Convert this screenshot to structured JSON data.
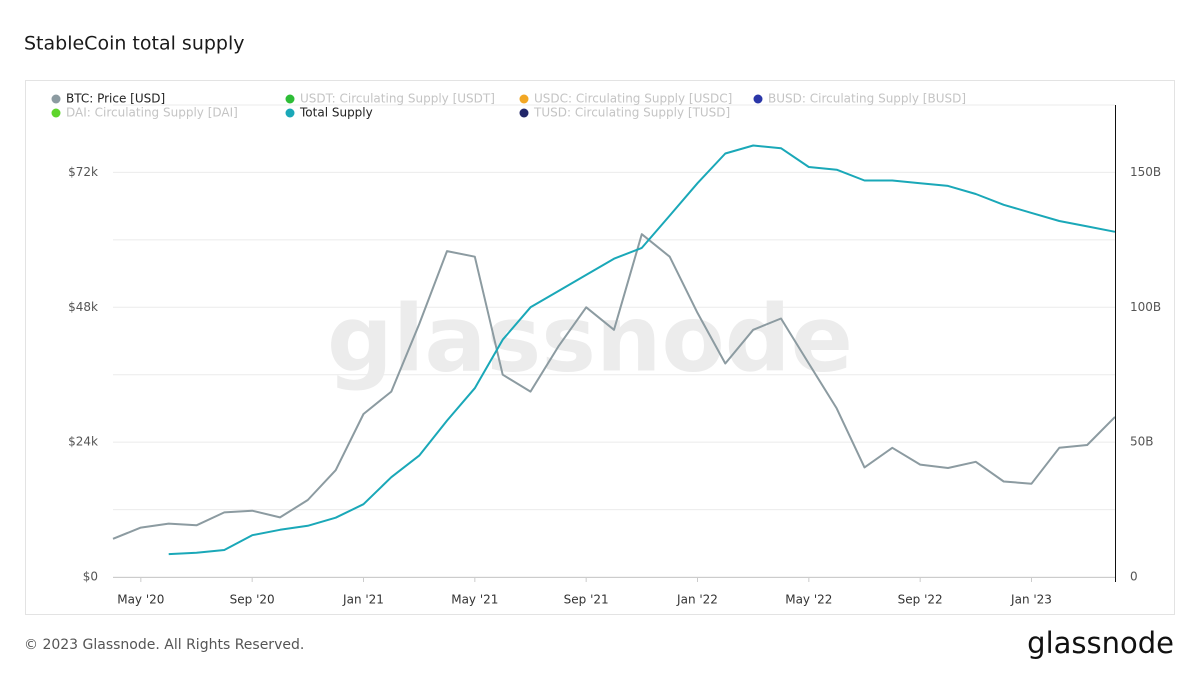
{
  "chart_data": {
    "type": "line",
    "title": "StableCoin total supply",
    "watermark": "glassnode",
    "footer": "© 2023 Glassnode. All Rights Reserved.",
    "logo": "glassnode",
    "x": [
      "2020-04",
      "2020-05",
      "2020-06",
      "2020-07",
      "2020-08",
      "2020-09",
      "2020-10",
      "2020-11",
      "2020-12",
      "2021-01",
      "2021-02",
      "2021-03",
      "2021-04",
      "2021-05",
      "2021-06",
      "2021-07",
      "2021-08",
      "2021-09",
      "2021-10",
      "2021-11",
      "2021-12",
      "2022-01",
      "2022-02",
      "2022-03",
      "2022-04",
      "2022-05",
      "2022-06",
      "2022-07",
      "2022-08",
      "2022-09",
      "2022-10",
      "2022-11",
      "2022-12",
      "2023-01",
      "2023-02",
      "2023-03",
      "2023-04"
    ],
    "xlim": [
      "2020-04",
      "2023-04"
    ],
    "xticks": [
      {
        "value": "2020-05",
        "label": "May '20"
      },
      {
        "value": "2020-09",
        "label": "Sep '20"
      },
      {
        "value": "2021-01",
        "label": "Jan '21"
      },
      {
        "value": "2021-05",
        "label": "May '21"
      },
      {
        "value": "2021-09",
        "label": "Sep '21"
      },
      {
        "value": "2022-01",
        "label": "Jan '22"
      },
      {
        "value": "2022-05",
        "label": "May '22"
      },
      {
        "value": "2022-09",
        "label": "Sep '22"
      },
      {
        "value": "2023-01",
        "label": "Jan '23"
      }
    ],
    "ylim": [
      0,
      84000
    ],
    "yticks": [
      {
        "value": 0,
        "label": "$0"
      },
      {
        "value": 24000,
        "label": "$24k"
      },
      {
        "value": 48000,
        "label": "$48k"
      },
      {
        "value": 72000,
        "label": "$72k"
      }
    ],
    "ygrid": [
      0,
      12000,
      24000,
      36000,
      48000,
      60000,
      72000,
      84000
    ],
    "y2lim": [
      0,
      175
    ],
    "y2ticks": [
      0,
      {
        "value": 50,
        "label": "50B"
      },
      {
        "value": 100,
        "label": "100B"
      },
      {
        "value": 150,
        "label": "150B"
      }
    ],
    "grid": true,
    "legend": "top-left",
    "series": [
      {
        "name": "BTC: Price [USD]",
        "color": "#8c9ba1",
        "values": [
          6800,
          8800,
          9500,
          9200,
          11500,
          11800,
          10600,
          13700,
          19000,
          29000,
          33000,
          45000,
          58000,
          57000,
          36000,
          33000,
          41000,
          48000,
          44000,
          61000,
          57000,
          47000,
          38000,
          44000,
          46000,
          38000,
          30000,
          19500,
          23000,
          20000,
          19400,
          20500,
          17000,
          16600,
          23000,
          23500,
          28500
        ]
      },
      {
        "name": "USDT: Circulating Supply [USDT]",
        "color": "#2dbd36",
        "hidden": true,
        "axis": "y2",
        "values": [
          null,
          null,
          null,
          null,
          null,
          null,
          null,
          null,
          null,
          null,
          null,
          null,
          null,
          null,
          null,
          null,
          null,
          null,
          null,
          null,
          null,
          null,
          null,
          null,
          null,
          null,
          null,
          null,
          null,
          null,
          null,
          null,
          null,
          null,
          null,
          null,
          null
        ]
      },
      {
        "name": "USDC: Circulating Supply [USDC]",
        "color": "#f2a724",
        "hidden": true,
        "axis": "y2",
        "values": [
          null,
          null,
          null,
          null,
          null,
          null,
          null,
          null,
          null,
          null,
          null,
          null,
          null,
          null,
          null,
          null,
          null,
          null,
          null,
          null,
          null,
          null,
          null,
          null,
          null,
          null,
          null,
          null,
          null,
          null,
          null,
          null,
          null,
          null,
          null,
          null,
          null
        ]
      },
      {
        "name": "BUSD: Circulating Supply [BUSD]",
        "color": "#2a36a8",
        "hidden": true,
        "axis": "y2",
        "values": [
          null,
          null,
          null,
          null,
          null,
          null,
          null,
          null,
          null,
          null,
          null,
          null,
          null,
          null,
          null,
          null,
          null,
          null,
          null,
          null,
          null,
          null,
          null,
          null,
          null,
          null,
          null,
          null,
          null,
          null,
          null,
          null,
          null,
          null,
          null,
          null,
          null
        ]
      },
      {
        "name": "DAI: Circulating Supply [DAI]",
        "color": "#5fd52c",
        "hidden": true,
        "axis": "y2",
        "values": [
          null,
          null,
          null,
          null,
          null,
          null,
          null,
          null,
          null,
          null,
          null,
          null,
          null,
          null,
          null,
          null,
          null,
          null,
          null,
          null,
          null,
          null,
          null,
          null,
          null,
          null,
          null,
          null,
          null,
          null,
          null,
          null,
          null,
          null,
          null,
          null,
          null
        ]
      },
      {
        "name": "Total Supply",
        "color": "#1aa8b8",
        "axis": "y2",
        "values": [
          null,
          null,
          8.5,
          9,
          10,
          15.5,
          17.5,
          19,
          22,
          27,
          37,
          45,
          58,
          70,
          88,
          100,
          106,
          112,
          118,
          122,
          134,
          146,
          157,
          160,
          159,
          152,
          151,
          147,
          147,
          146,
          145,
          142,
          138,
          135,
          132,
          130,
          128
        ]
      },
      {
        "name": "TUSD: Circulating Supply [TUSD]",
        "color": "#22276a",
        "hidden": true,
        "axis": "y2",
        "values": [
          null,
          null,
          null,
          null,
          null,
          null,
          null,
          null,
          null,
          null,
          null,
          null,
          null,
          null,
          null,
          null,
          null,
          null,
          null,
          null,
          null,
          null,
          null,
          null,
          null,
          null,
          null,
          null,
          null,
          null,
          null,
          null,
          null,
          null,
          null,
          null,
          null
        ]
      }
    ]
  }
}
